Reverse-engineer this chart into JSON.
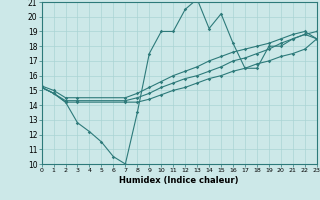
{
  "xlabel": "Humidex (Indice chaleur)",
  "bg_color": "#cce8e8",
  "line_color": "#2d7a7a",
  "grid_color": "#aad4d4",
  "xmin": 0,
  "xmax": 23,
  "ymin": 10,
  "ymax": 21,
  "lines": [
    {
      "x": [
        0,
        1,
        2,
        3,
        4,
        5,
        6,
        7,
        8,
        9,
        10,
        11,
        12,
        13,
        14,
        15,
        16,
        17,
        18,
        19,
        20,
        21,
        22,
        23
      ],
      "y": [
        15.2,
        14.8,
        14.2,
        12.8,
        12.2,
        11.5,
        10.5,
        10.0,
        13.5,
        17.5,
        19.0,
        19.0,
        20.5,
        21.2,
        19.2,
        20.2,
        18.2,
        16.5,
        16.5,
        18.0,
        18.0,
        18.5,
        18.8,
        18.5
      ]
    },
    {
      "x": [
        0,
        1,
        2,
        3,
        7,
        8,
        9,
        10,
        11,
        12,
        13,
        14,
        15,
        16,
        17,
        18,
        19,
        20,
        21,
        22,
        23
      ],
      "y": [
        15.2,
        14.8,
        14.2,
        14.2,
        14.2,
        14.2,
        14.4,
        14.7,
        15.0,
        15.2,
        15.5,
        15.8,
        16.0,
        16.3,
        16.5,
        16.8,
        17.0,
        17.3,
        17.5,
        17.8,
        18.5
      ]
    },
    {
      "x": [
        0,
        1,
        2,
        3,
        7,
        8,
        9,
        10,
        11,
        12,
        13,
        14,
        15,
        16,
        17,
        18,
        19,
        20,
        21,
        22,
        23
      ],
      "y": [
        15.2,
        14.8,
        14.3,
        14.3,
        14.3,
        14.5,
        14.8,
        15.2,
        15.5,
        15.8,
        16.0,
        16.3,
        16.6,
        17.0,
        17.2,
        17.5,
        17.8,
        18.2,
        18.5,
        18.8,
        19.0
      ]
    },
    {
      "x": [
        0,
        1,
        2,
        3,
        7,
        8,
        9,
        10,
        11,
        12,
        13,
        14,
        15,
        16,
        17,
        18,
        19,
        20,
        21,
        22,
        23
      ],
      "y": [
        15.3,
        15.0,
        14.5,
        14.5,
        14.5,
        14.8,
        15.2,
        15.6,
        16.0,
        16.3,
        16.6,
        17.0,
        17.3,
        17.6,
        17.8,
        18.0,
        18.2,
        18.5,
        18.8,
        19.0,
        18.5
      ]
    }
  ]
}
